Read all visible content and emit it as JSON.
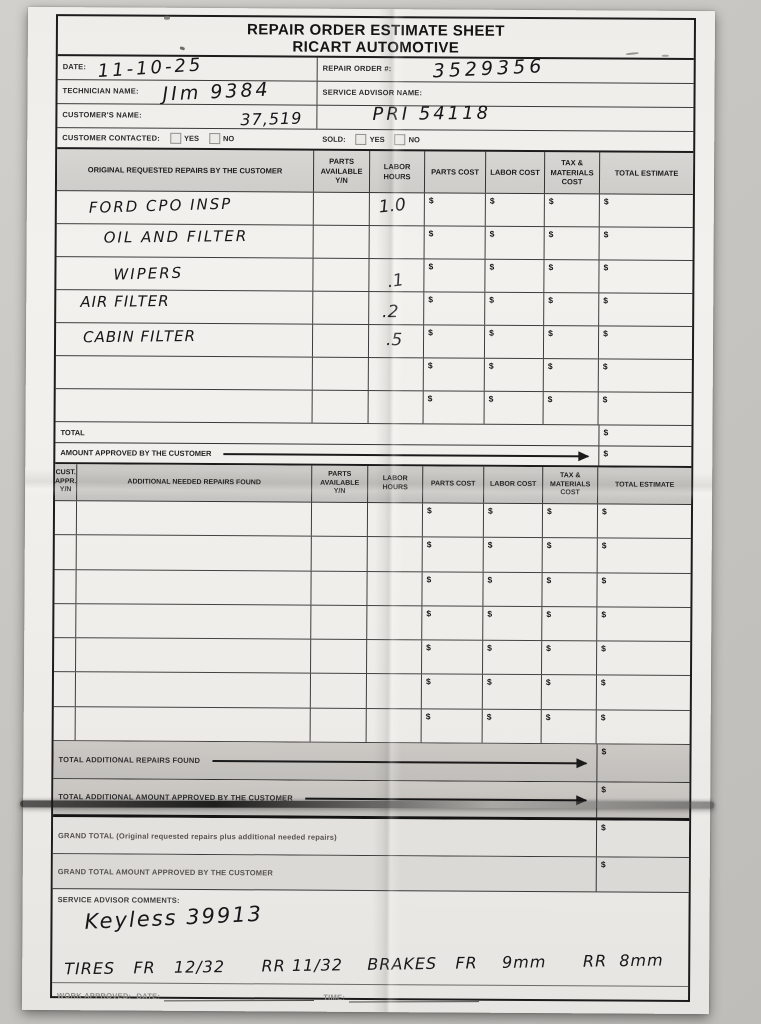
{
  "currency": "$",
  "header": {
    "title": "REPAIR ORDER ESTIMATE SHEET",
    "company": "RICART AUTOMOTIVE"
  },
  "info": {
    "date_label": "DATE:",
    "date_value": "11-10-25",
    "repair_order_label": "REPAIR ORDER #:",
    "repair_order_value": "3529356",
    "technician_label": "TECHNICIAN NAME:",
    "technician_value": "JIm 9384",
    "service_advisor_label": "SERVICE ADVISOR NAME:",
    "service_advisor_value": "PRI 54118",
    "customer_label": "CUSTOMER'S NAME:",
    "customer_value": "37,519",
    "customer_contacted_label": "CUSTOMER CONTACTED:",
    "sold_label": "SOLD:",
    "yes_label": "YES",
    "no_label": "NO"
  },
  "original_table": {
    "col_repairs": "ORIGINAL REQUESTED REPAIRS BY THE CUSTOMER",
    "col_parts_available": "PARTS AVAILABLE Y/N",
    "col_labor_hours": "LABOR HOURS",
    "col_parts_cost": "PARTS COST",
    "col_labor_cost": "LABOR COST",
    "col_tax_materials": "TAX & MATERIALS COST",
    "col_total_estimate": "TOTAL ESTIMATE",
    "rows": [
      {
        "description": "FORD CPO INSP",
        "labor_hours": "1.0"
      },
      {
        "description": "OIL AND FILTER",
        "labor_hours": ""
      },
      {
        "description": "WIPERS",
        "labor_hours": ".1"
      },
      {
        "description": "AIR FILTER",
        "labor_hours": ".2"
      },
      {
        "description": "CABIN FILTER",
        "labor_hours": ".5"
      },
      {
        "description": "",
        "labor_hours": ""
      },
      {
        "description": "",
        "labor_hours": ""
      }
    ],
    "total_label": "TOTAL",
    "amount_approved_label": "AMOUNT APPROVED BY THE CUSTOMER"
  },
  "additional_table": {
    "col_cust_appr": "CUST. APPR. Y/N",
    "col_repairs": "ADDITIONAL NEEDED REPAIRS FOUND",
    "col_parts_available": "PARTS AVAILABLE Y/N",
    "col_labor_hours": "LABOR HOURS",
    "col_parts_cost": "PARTS COST",
    "col_labor_cost": "LABOR COST",
    "col_tax_materials": "TAX & MATERIALS COST",
    "col_total_estimate": "TOTAL ESTIMATE",
    "total_additional_label": "TOTAL ADDITIONAL REPAIRS FOUND",
    "total_additional_approved_label": "TOTAL ADDITIONAL AMOUNT APPROVED BY THE CUSTOMER"
  },
  "summary": {
    "grand_total_label": "GRAND TOTAL (Original requested repairs plus additional needed repairs)",
    "grand_total_approved_label": "GRAND TOTAL AMOUNT APPROVED BY THE CUSTOMER"
  },
  "comments": {
    "label": "SERVICE ADVISOR COMMENTS:",
    "note1": "Keyless 39913",
    "note2": "TIRES   FR   12/32      RR 11/32    BRAKES   FR    9mm      RR  8mm"
  },
  "footer": {
    "work_approved_label": "WORK APPROVED:",
    "date_label": "DATE:",
    "time_label": "TIME:"
  }
}
